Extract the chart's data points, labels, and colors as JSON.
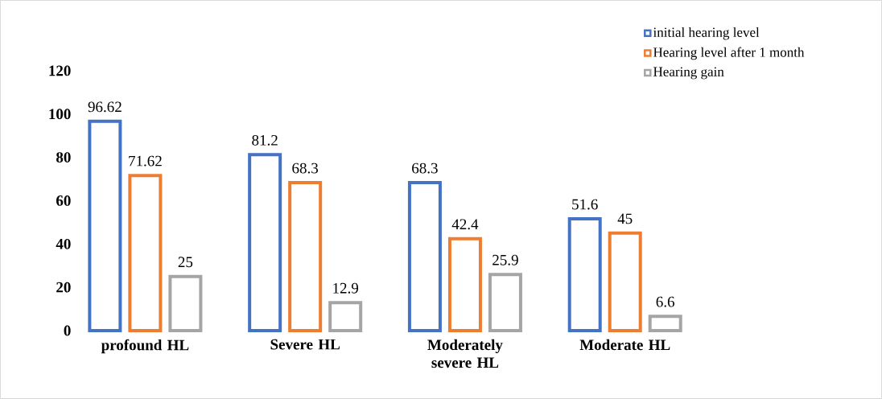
{
  "chart_data": {
    "type": "bar",
    "categories": [
      "profound HL",
      "Severe HL",
      "Moderately severe HL",
      "Moderate HL"
    ],
    "series": [
      {
        "name": "initial hearing level",
        "color": "#4472c4",
        "values": [
          96.62,
          81.2,
          68.3,
          51.6
        ]
      },
      {
        "name": "Hearing level after 1 month",
        "color": "#ed7d31",
        "values": [
          71.62,
          68.3,
          42.4,
          45
        ]
      },
      {
        "name": "Hearing gain",
        "color": "#a5a5a5",
        "values": [
          25,
          12.9,
          25.9,
          6.6
        ]
      }
    ],
    "ylim": [
      0,
      120
    ],
    "yticks": [
      0,
      20,
      40,
      60,
      80,
      100,
      120
    ],
    "data_labels": true,
    "legend": "top right",
    "grid": false
  }
}
